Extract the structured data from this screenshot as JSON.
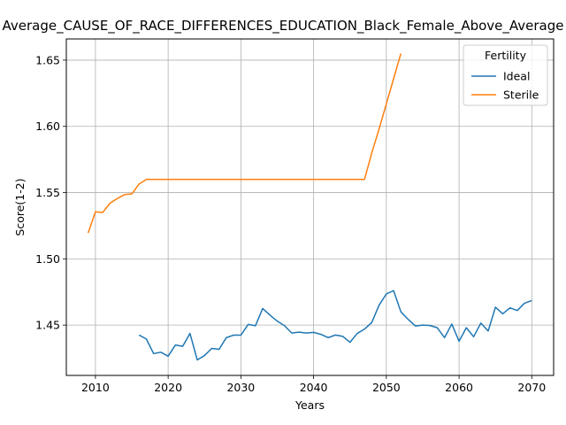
{
  "chart_data": {
    "type": "line",
    "title": "Average_CAUSE_OF_RACE_DIFFERENCES_EDUCATION_Black_Female_Above_Average",
    "xlabel": "Years",
    "ylabel": "Score(1-2)",
    "xlim": [
      2006,
      2073
    ],
    "ylim": [
      1.412,
      1.666
    ],
    "xticks": [
      2010,
      2020,
      2030,
      2040,
      2050,
      2060,
      2070
    ],
    "yticks": [
      1.45,
      1.5,
      1.55,
      1.6,
      1.65
    ],
    "grid": true,
    "legend": {
      "title": "Fertility",
      "placement": "top-right"
    },
    "series": [
      {
        "name": "Ideal",
        "color": "#1f77b4",
        "x": [
          2016,
          2017,
          2018,
          2019,
          2020,
          2021,
          2022,
          2023,
          2024,
          2025,
          2026,
          2027,
          2028,
          2029,
          2030,
          2031,
          2032,
          2033,
          2034,
          2035,
          2036,
          2037,
          2038,
          2039,
          2040,
          2041,
          2042,
          2043,
          2044,
          2045,
          2046,
          2047,
          2048,
          2049,
          2050,
          2051,
          2052,
          2053,
          2054,
          2055,
          2056,
          2057,
          2058,
          2059,
          2060,
          2061,
          2062,
          2063,
          2064,
          2065,
          2066,
          2067,
          2068,
          2069,
          2070
        ],
        "y": [
          1.4425,
          1.4395,
          1.4285,
          1.4295,
          1.4265,
          1.435,
          1.434,
          1.4437,
          1.4237,
          1.427,
          1.4324,
          1.4317,
          1.4405,
          1.4424,
          1.4424,
          1.4505,
          1.4495,
          1.4625,
          1.4575,
          1.453,
          1.4495,
          1.444,
          1.4447,
          1.444,
          1.4445,
          1.443,
          1.4405,
          1.4425,
          1.4415,
          1.437,
          1.4437,
          1.447,
          1.452,
          1.465,
          1.4735,
          1.476,
          1.46,
          1.4543,
          1.4493,
          1.45,
          1.4497,
          1.448,
          1.4405,
          1.4508,
          1.4378,
          1.448,
          1.4412,
          1.4515,
          1.4455,
          1.4635,
          1.4585,
          1.463,
          1.461,
          1.4665,
          1.4685
        ]
      },
      {
        "name": "Sterile",
        "color": "#ff7f0e",
        "x": [
          2009,
          2010,
          2011,
          2012,
          2013,
          2014,
          2015,
          2016,
          2017,
          2018,
          2019,
          2020,
          2021,
          2022,
          2023,
          2024,
          2025,
          2026,
          2027,
          2028,
          2029,
          2030,
          2031,
          2032,
          2033,
          2034,
          2035,
          2036,
          2037,
          2038,
          2039,
          2040,
          2041,
          2042,
          2043,
          2044,
          2045,
          2046,
          2047,
          2048,
          2049,
          2050,
          2051,
          2052
        ],
        "y": [
          1.5195,
          1.5355,
          1.535,
          1.542,
          1.5455,
          1.5485,
          1.549,
          1.5565,
          1.56,
          1.56,
          1.56,
          1.56,
          1.56,
          1.56,
          1.56,
          1.56,
          1.56,
          1.56,
          1.56,
          1.56,
          1.56,
          1.56,
          1.56,
          1.56,
          1.56,
          1.56,
          1.56,
          1.56,
          1.56,
          1.56,
          1.56,
          1.56,
          1.56,
          1.56,
          1.56,
          1.56,
          1.56,
          1.56,
          1.56,
          1.58,
          1.598,
          1.617,
          1.636,
          1.655
        ]
      }
    ]
  }
}
